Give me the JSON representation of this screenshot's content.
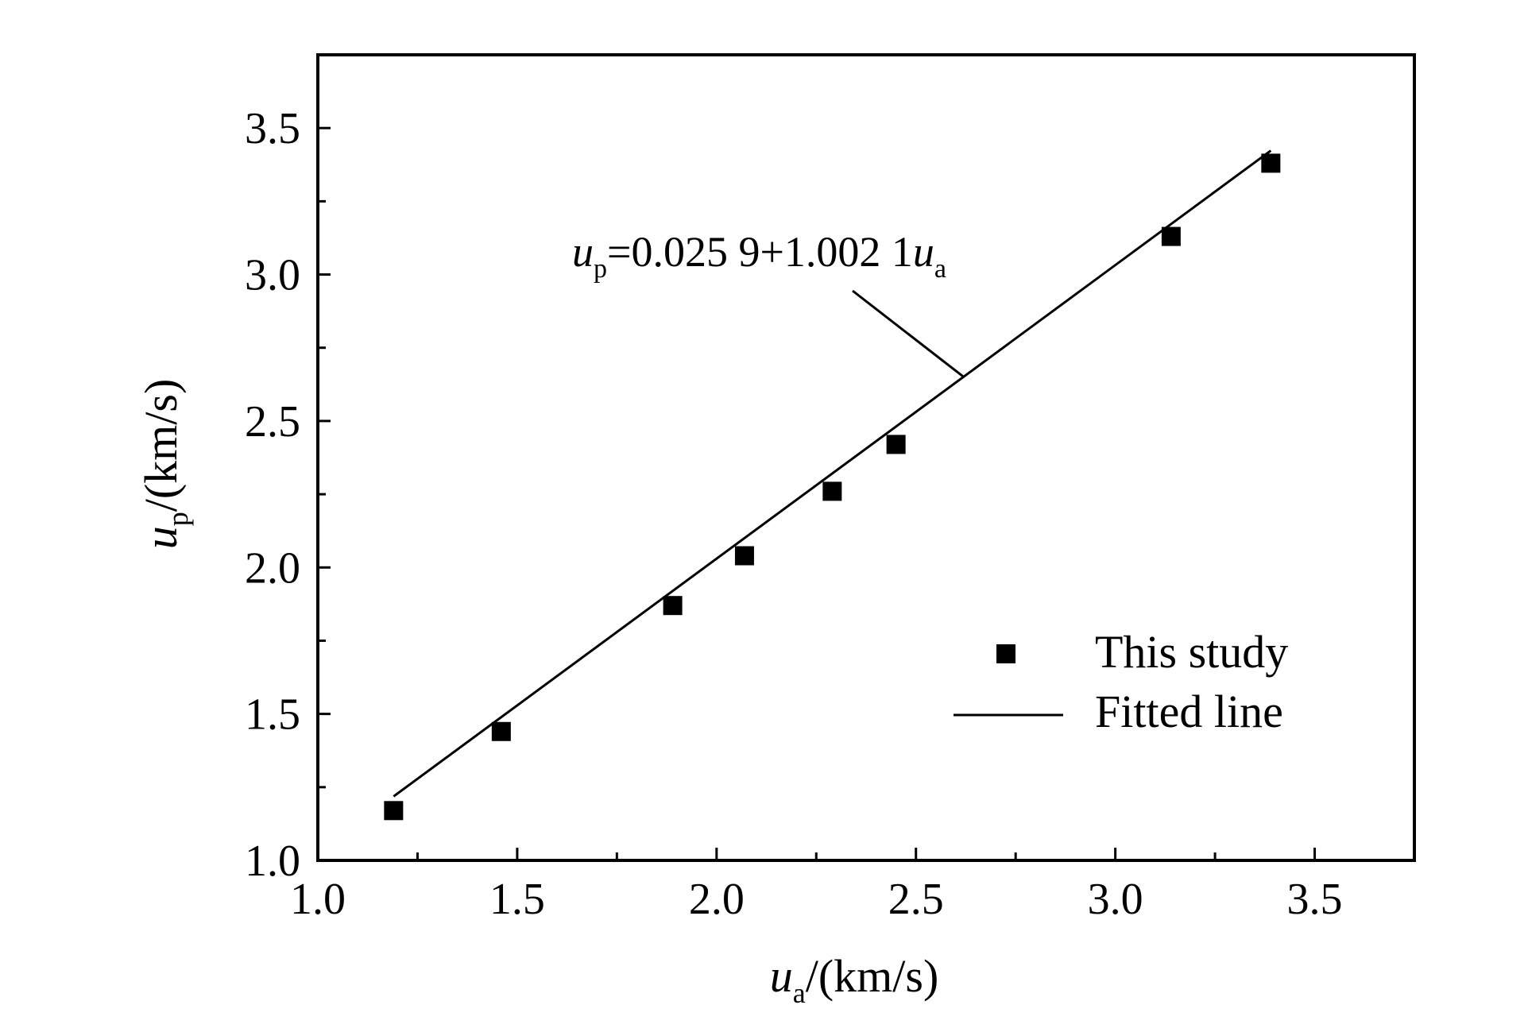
{
  "chart_data": {
    "type": "scatter",
    "xlabel": {
      "main": "u",
      "sub": "a",
      "rest": "/(km/s)"
    },
    "ylabel": {
      "main": "u",
      "sub": "p",
      "rest": "/(km/s)"
    },
    "xlim": [
      1.0,
      3.75
    ],
    "ylim": [
      1.0,
      3.75
    ],
    "x_ticks": [
      {
        "value": 1.0,
        "label": "1.0"
      },
      {
        "value": 1.5,
        "label": "1.5"
      },
      {
        "value": 2.0,
        "label": "2.0"
      },
      {
        "value": 2.5,
        "label": "2.5"
      },
      {
        "value": 3.0,
        "label": "3.0"
      },
      {
        "value": 3.5,
        "label": "3.5"
      }
    ],
    "y_ticks": [
      {
        "value": 1.0,
        "label": "1.0"
      },
      {
        "value": 1.5,
        "label": "1.5"
      },
      {
        "value": 2.0,
        "label": "2.0"
      },
      {
        "value": 2.5,
        "label": "2.5"
      },
      {
        "value": 3.0,
        "label": "3.0"
      },
      {
        "value": 3.5,
        "label": "3.5"
      }
    ],
    "minor_tick_step": 0.25,
    "series": [
      {
        "name": "This study",
        "type": "scatter",
        "marker": "square",
        "color": "#000000",
        "x": [
          1.19,
          1.46,
          1.89,
          2.07,
          2.29,
          2.45,
          3.14,
          3.39
        ],
        "y": [
          1.17,
          1.44,
          1.87,
          2.04,
          2.26,
          2.42,
          3.13,
          3.38
        ]
      },
      {
        "name": "Fitted line",
        "type": "line",
        "color": "#000000",
        "intercept": 0.0259,
        "slope": 1.0021,
        "x_range": [
          1.19,
          3.39
        ]
      }
    ],
    "annotation": {
      "main1": "u",
      "sub1": "p",
      "middle": "=0.025 9+1.002 1",
      "main2": "u",
      "sub2": "a",
      "pointer_to": {
        "x": 2.62,
        "y": 2.65
      }
    },
    "legend": {
      "position": "bottom-right",
      "entries": [
        "This study",
        "Fitted line"
      ]
    },
    "grid": false
  }
}
